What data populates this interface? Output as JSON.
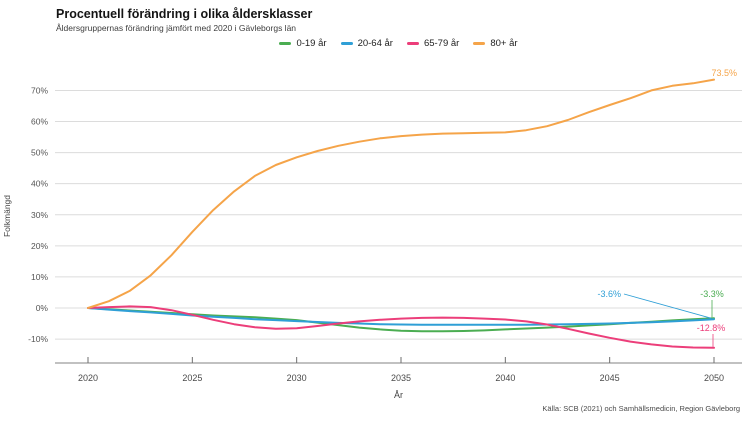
{
  "chart_data": {
    "type": "line",
    "title": "Procentuell förändring i olika åldersklasser",
    "subtitle": "Åldersgruppernas förändring jämfört med 2020 i Gävleborgs län",
    "xlabel": "År",
    "ylabel": "Folkmängd",
    "source": "Källa: SCB (2021) och Samhällsmedicin, Region Gävleborg",
    "legend_position": "top",
    "grid": "horizontal",
    "x_range": [
      2020,
      2050
    ],
    "ylim": [
      -15,
      76
    ],
    "x_ticks": [
      {
        "label": "2020",
        "value": 2020
      },
      {
        "label": "2025",
        "value": 2025
      },
      {
        "label": "2030",
        "value": 2030
      },
      {
        "label": "2035",
        "value": 2035
      },
      {
        "label": "2040",
        "value": 2040
      },
      {
        "label": "2045",
        "value": 2045
      },
      {
        "label": "2050",
        "value": 2050
      }
    ],
    "y_ticks": [
      {
        "label": "70%",
        "value": 70
      },
      {
        "label": "60%",
        "value": 60
      },
      {
        "label": "50%",
        "value": 50
      },
      {
        "label": "40%",
        "value": 40
      },
      {
        "label": "30%",
        "value": 30
      },
      {
        "label": "20%",
        "value": 20
      },
      {
        "label": "10%",
        "value": 10
      },
      {
        "label": "0%",
        "value": 0
      },
      {
        "label": "-10%",
        "value": -10
      }
    ],
    "x": [
      2020,
      2021,
      2022,
      2023,
      2024,
      2025,
      2026,
      2027,
      2028,
      2029,
      2030,
      2031,
      2032,
      2033,
      2034,
      2035,
      2036,
      2037,
      2038,
      2039,
      2040,
      2041,
      2042,
      2043,
      2044,
      2045,
      2046,
      2047,
      2048,
      2049,
      2050
    ],
    "series": [
      {
        "name": "0-19 år",
        "color": "#4bad52",
        "end_label": "-3.3%",
        "values": [
          0,
          -0.4,
          -0.8,
          -1.2,
          -1.6,
          -2.0,
          -2.4,
          -2.7,
          -3.0,
          -3.4,
          -3.9,
          -4.7,
          -5.5,
          -6.3,
          -6.9,
          -7.3,
          -7.5,
          -7.5,
          -7.4,
          -7.2,
          -6.9,
          -6.6,
          -6.3,
          -6.0,
          -5.6,
          -5.2,
          -4.8,
          -4.4,
          -4.0,
          -3.6,
          -3.3
        ]
      },
      {
        "name": "20-64 år",
        "color": "#2f9fd6",
        "end_label": "-3.6%",
        "values": [
          0,
          -0.5,
          -1.0,
          -1.4,
          -1.9,
          -2.4,
          -2.8,
          -3.2,
          -3.6,
          -3.9,
          -4.2,
          -4.5,
          -4.8,
          -5.0,
          -5.2,
          -5.3,
          -5.4,
          -5.4,
          -5.4,
          -5.4,
          -5.4,
          -5.4,
          -5.3,
          -5.2,
          -5.1,
          -5.0,
          -4.8,
          -4.6,
          -4.3,
          -4.0,
          -3.6
        ]
      },
      {
        "name": "65-79 år",
        "color": "#ec3e7a",
        "end_label": "-12.8%",
        "values": [
          0,
          0.3,
          0.5,
          0.3,
          -0.7,
          -2.2,
          -3.8,
          -5.2,
          -6.2,
          -6.7,
          -6.5,
          -5.8,
          -5.0,
          -4.3,
          -3.8,
          -3.4,
          -3.2,
          -3.1,
          -3.2,
          -3.4,
          -3.7,
          -4.3,
          -5.3,
          -6.7,
          -8.2,
          -9.6,
          -10.8,
          -11.7,
          -12.4,
          -12.7,
          -12.8
        ]
      },
      {
        "name": "80+ år",
        "color": "#f5a449",
        "end_label": "73.5%",
        "values": [
          0,
          2.2,
          5.5,
          10.5,
          17.0,
          24.5,
          31.5,
          37.5,
          42.5,
          46.0,
          48.5,
          50.5,
          52.2,
          53.5,
          54.6,
          55.3,
          55.8,
          56.1,
          56.2,
          56.4,
          56.5,
          57.2,
          58.5,
          60.5,
          63.0,
          65.3,
          67.5,
          70.0,
          71.5,
          72.3,
          73.5
        ]
      }
    ]
  }
}
